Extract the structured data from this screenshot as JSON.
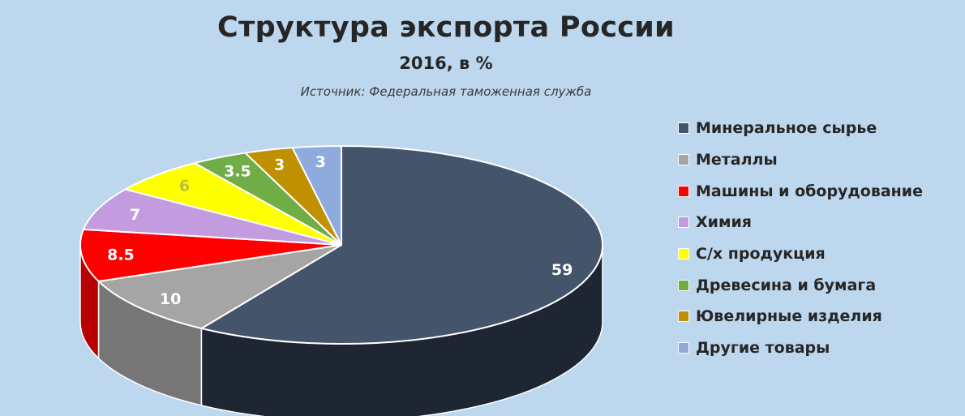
{
  "chart_data": {
    "type": "pie",
    "title": "Структура экспорта России",
    "subtitle": "2016, в %",
    "source": "Источник: Федеральная таможенная служба",
    "legend_position": "right",
    "slices": [
      {
        "label": "Минеральное сырье",
        "value": 59,
        "value_label": "59",
        "color": "#44546a",
        "side_color": "#1e2633",
        "label_color": "#ffffff"
      },
      {
        "label": "Металлы",
        "value": 10,
        "value_label": "10",
        "color": "#a5a5a5",
        "side_color": "#767676",
        "label_color": "#ffffff"
      },
      {
        "label": "Машины и оборудование",
        "value": 8.5,
        "value_label": "8.5",
        "color": "#ff0000",
        "side_color": "#b80000",
        "label_color": "#ffffff"
      },
      {
        "label": "Химия",
        "value": 7,
        "value_label": "7",
        "color": "#c39bdf",
        "side_color": "#8e6aa8",
        "label_color": "#ffffff"
      },
      {
        "label": "С/х продукция",
        "value": 6,
        "value_label": "6",
        "color": "#ffff00",
        "side_color": "#c4c400",
        "label_color": "#bfbf3a"
      },
      {
        "label": "Древесина и бумага",
        "value": 3.5,
        "value_label": "3.5",
        "color": "#70ad47",
        "side_color": "#4e7d31",
        "label_color": "#ffffff"
      },
      {
        "label": "Ювелирные изделия",
        "value": 3,
        "value_label": "3",
        "color": "#bf9000",
        "side_color": "#8a6800",
        "label_color": "#ffffff"
      },
      {
        "label": "Другие товары",
        "value": 3,
        "value_label": "3",
        "color": "#8faadc",
        "side_color": "#6a82ad",
        "label_color": "#ffffff"
      }
    ]
  }
}
